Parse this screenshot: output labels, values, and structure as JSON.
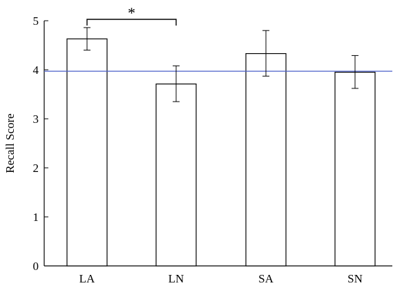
{
  "chart_data": {
    "type": "bar",
    "categories": [
      "LA",
      "LN",
      "SA",
      "SN"
    ],
    "values": [
      4.63,
      3.71,
      4.33,
      3.95
    ],
    "error_low": [
      4.4,
      3.35,
      3.87,
      3.62
    ],
    "error_high": [
      4.86,
      4.08,
      4.8,
      4.29
    ],
    "reference_line": 3.97,
    "ylabel": "Recall Score",
    "xlabel": "",
    "ylim": [
      0,
      5
    ],
    "yticks": [
      0,
      1,
      2,
      3,
      4,
      5
    ],
    "grid": false,
    "significance": {
      "from": "LA",
      "to": "LN",
      "label": "*"
    },
    "colors": {
      "bar_fill": "#ffffff",
      "bar_stroke": "#000000",
      "reference_line": "#4a5ec8",
      "axis": "#000000"
    }
  }
}
